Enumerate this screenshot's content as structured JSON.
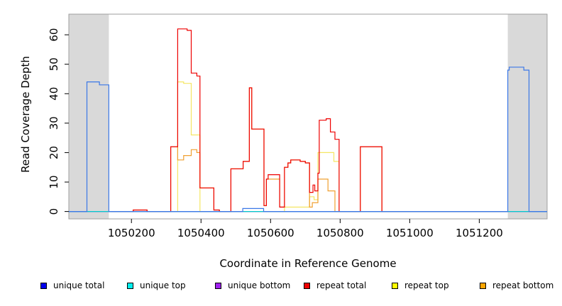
{
  "chart_data": {
    "type": "line",
    "title": "",
    "xlabel": "Coordinate in Reference Genome",
    "ylabel": "Read Coverage Depth",
    "xlim": [
      1050020,
      1051395
    ],
    "ylim": [
      -2.5,
      67
    ],
    "x_ticks": [
      1050200,
      1050400,
      1050600,
      1050800,
      1051000,
      1051200
    ],
    "x_tick_labels": [
      "1050200",
      "1050400",
      "1050600",
      "1050800",
      "1051000",
      "1051200"
    ],
    "y_ticks": [
      0,
      10,
      20,
      30,
      40,
      50,
      60
    ],
    "y_tick_labels": [
      "0",
      "10",
      "20",
      "30",
      "40",
      "50",
      "60"
    ],
    "shaded_regions": [
      [
        1050020,
        1050135
      ],
      [
        1051282,
        1051395
      ]
    ],
    "shade_color": "#d9d9d9",
    "grid": false,
    "legend_position": "bottom",
    "series": [
      {
        "name": "unique total",
        "color": "#0000ee",
        "line_color": "#3b78e7",
        "points": [
          [
            1050020,
            0
          ],
          [
            1050072,
            0
          ],
          [
            1050072,
            44
          ],
          [
            1050108,
            44
          ],
          [
            1050108,
            43
          ],
          [
            1050135,
            43
          ],
          [
            1050135,
            0
          ],
          [
            1050520,
            0
          ],
          [
            1050520,
            1
          ],
          [
            1050580,
            1
          ],
          [
            1050580,
            0
          ],
          [
            1051282,
            0
          ],
          [
            1051282,
            48
          ],
          [
            1051286,
            48
          ],
          [
            1051286,
            49
          ],
          [
            1051328,
            49
          ],
          [
            1051328,
            48
          ],
          [
            1051343,
            48
          ],
          [
            1051343,
            0
          ],
          [
            1051395,
            0
          ]
        ]
      },
      {
        "name": "unique top",
        "color": "#00eeee",
        "line_color": "#00cccc",
        "points": [
          [
            1050020,
            0
          ],
          [
            1051395,
            0
          ]
        ]
      },
      {
        "name": "unique bottom",
        "color": "#a020f0",
        "line_color": "#a020f0",
        "points": [
          [
            1050020,
            0
          ],
          [
            1051395,
            0
          ]
        ]
      },
      {
        "name": "repeat total",
        "color": "#ee0000",
        "line_color": "#ee0000",
        "points": [
          [
            1050140,
            0
          ],
          [
            1050205,
            0
          ],
          [
            1050205,
            0.5
          ],
          [
            1050245,
            0.5
          ],
          [
            1050245,
            0
          ],
          [
            1050313,
            0
          ],
          [
            1050313,
            22
          ],
          [
            1050333,
            22
          ],
          [
            1050333,
            62
          ],
          [
            1050345,
            62
          ],
          [
            1050345,
            62
          ],
          [
            1050360,
            62
          ],
          [
            1050360,
            61.5
          ],
          [
            1050372,
            61.5
          ],
          [
            1050372,
            47
          ],
          [
            1050388,
            47
          ],
          [
            1050388,
            46
          ],
          [
            1050397,
            46
          ],
          [
            1050397,
            8
          ],
          [
            1050437,
            8
          ],
          [
            1050437,
            0.5
          ],
          [
            1050453,
            0.5
          ],
          [
            1050453,
            0
          ],
          [
            1050486,
            0
          ],
          [
            1050486,
            14.5
          ],
          [
            1050521,
            14.5
          ],
          [
            1050521,
            17
          ],
          [
            1050539,
            17
          ],
          [
            1050539,
            42
          ],
          [
            1050546,
            42
          ],
          [
            1050546,
            28
          ],
          [
            1050581,
            28
          ],
          [
            1050581,
            2
          ],
          [
            1050588,
            2
          ],
          [
            1050588,
            11
          ],
          [
            1050593,
            11
          ],
          [
            1050593,
            12.5
          ],
          [
            1050626,
            12.5
          ],
          [
            1050626,
            1.5
          ],
          [
            1050640,
            1.5
          ],
          [
            1050640,
            15
          ],
          [
            1050650,
            15
          ],
          [
            1050650,
            16.5
          ],
          [
            1050658,
            16.5
          ],
          [
            1050658,
            17.5
          ],
          [
            1050685,
            17.5
          ],
          [
            1050685,
            17
          ],
          [
            1050700,
            17
          ],
          [
            1050700,
            16.5
          ],
          [
            1050712,
            16.5
          ],
          [
            1050712,
            6.5
          ],
          [
            1050722,
            6.5
          ],
          [
            1050722,
            9
          ],
          [
            1050727,
            9
          ],
          [
            1050727,
            7
          ],
          [
            1050736,
            7
          ],
          [
            1050736,
            13
          ],
          [
            1050740,
            13
          ],
          [
            1050740,
            31
          ],
          [
            1050760,
            31
          ],
          [
            1050760,
            31.5
          ],
          [
            1050772,
            31.5
          ],
          [
            1050772,
            27
          ],
          [
            1050785,
            27
          ],
          [
            1050785,
            24.5
          ],
          [
            1050797,
            24.5
          ],
          [
            1050797,
            0
          ],
          [
            1050858,
            0
          ],
          [
            1050858,
            22
          ],
          [
            1050920,
            22
          ],
          [
            1050920,
            0
          ],
          [
            1051282,
            0
          ]
        ]
      },
      {
        "name": "repeat top",
        "color": "#ffff00",
        "line_color": "#f5e663",
        "points": [
          [
            1050140,
            0
          ],
          [
            1050333,
            0
          ],
          [
            1050333,
            44
          ],
          [
            1050350,
            44
          ],
          [
            1050350,
            43.5
          ],
          [
            1050372,
            43.5
          ],
          [
            1050372,
            26
          ],
          [
            1050397,
            26
          ],
          [
            1050397,
            0
          ],
          [
            1050640,
            0
          ],
          [
            1050640,
            1.5
          ],
          [
            1050712,
            1.5
          ],
          [
            1050712,
            5
          ],
          [
            1050725,
            5
          ],
          [
            1050725,
            4
          ],
          [
            1050736,
            4
          ],
          [
            1050736,
            20
          ],
          [
            1050782,
            20
          ],
          [
            1050782,
            17
          ],
          [
            1050797,
            17
          ],
          [
            1050797,
            0
          ],
          [
            1051282,
            0
          ]
        ]
      },
      {
        "name": "repeat bottom",
        "color": "#ffa500",
        "line_color": "#f0a030",
        "points": [
          [
            1050140,
            0
          ],
          [
            1050205,
            0
          ],
          [
            1050205,
            0.5
          ],
          [
            1050245,
            0.5
          ],
          [
            1050245,
            0
          ],
          [
            1050313,
            0
          ],
          [
            1050313,
            22
          ],
          [
            1050333,
            22
          ],
          [
            1050333,
            17.5
          ],
          [
            1050350,
            17.5
          ],
          [
            1050350,
            19
          ],
          [
            1050372,
            19
          ],
          [
            1050372,
            21
          ],
          [
            1050388,
            21
          ],
          [
            1050388,
            20
          ],
          [
            1050397,
            20
          ],
          [
            1050397,
            8
          ],
          [
            1050437,
            8
          ],
          [
            1050437,
            0.5
          ],
          [
            1050453,
            0.5
          ],
          [
            1050453,
            0
          ],
          [
            1050486,
            0
          ],
          [
            1050486,
            14.5
          ],
          [
            1050521,
            14.5
          ],
          [
            1050521,
            17
          ],
          [
            1050539,
            17
          ],
          [
            1050539,
            42
          ],
          [
            1050546,
            42
          ],
          [
            1050546,
            28
          ],
          [
            1050581,
            28
          ],
          [
            1050581,
            2
          ],
          [
            1050588,
            2
          ],
          [
            1050588,
            11
          ],
          [
            1050626,
            11
          ],
          [
            1050626,
            1.5
          ],
          [
            1050640,
            1.5
          ],
          [
            1050640,
            15
          ],
          [
            1050650,
            15
          ],
          [
            1050650,
            16.5
          ],
          [
            1050658,
            16.5
          ],
          [
            1050658,
            17.5
          ],
          [
            1050685,
            17.5
          ],
          [
            1050685,
            17
          ],
          [
            1050700,
            17
          ],
          [
            1050700,
            16.5
          ],
          [
            1050712,
            16.5
          ],
          [
            1050712,
            1.5
          ],
          [
            1050720,
            1.5
          ],
          [
            1050720,
            3
          ],
          [
            1050736,
            3
          ],
          [
            1050736,
            11
          ],
          [
            1050765,
            11
          ],
          [
            1050765,
            7
          ],
          [
            1050785,
            7
          ],
          [
            1050785,
            0
          ],
          [
            1050858,
            0
          ],
          [
            1050858,
            22
          ],
          [
            1050920,
            22
          ],
          [
            1050920,
            0
          ],
          [
            1051282,
            0
          ]
        ]
      }
    ]
  }
}
